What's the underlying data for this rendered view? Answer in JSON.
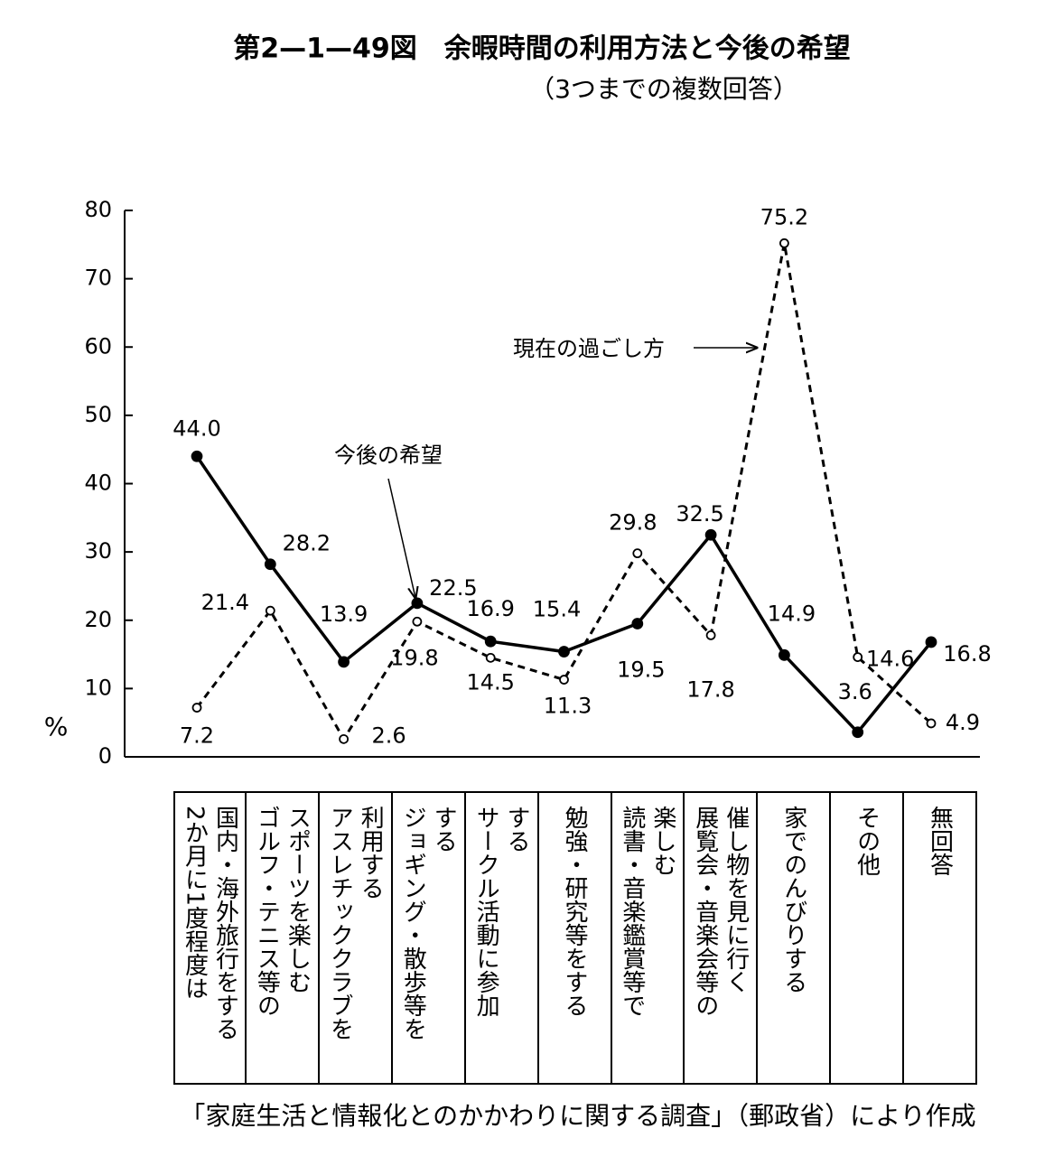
{
  "chart_data": {
    "type": "line",
    "title": "第2—1—49図　余暇時間の利用方法と今後の希望",
    "subtitle": "（3つまでの複数回答）",
    "y_label": "%",
    "source": "「家庭生活と情報化とのかかわりに関する調査」（郵政省）により作成",
    "categories": [
      "国内・海外旅行をする\n2か月に1度程度は",
      "スポーツを楽しむ\nゴルフ・テニス等の",
      "利用する\nアスレチッククラブを",
      "する\nジョギング・散歩等を",
      "する\nサークル活動に参加",
      "勉強・研究等をする",
      "楽しむ\n読書・音楽鑑賞等で",
      "催し物を見に行く\n展覧会・音楽会等の",
      "家でのんびりする",
      "その他",
      "無回答"
    ],
    "series": [
      {
        "name": "今後の希望",
        "color": "#000000",
        "style": "solid",
        "values": [
          44.0,
          28.2,
          13.9,
          22.5,
          16.9,
          15.4,
          19.5,
          32.5,
          14.9,
          3.6,
          16.8
        ],
        "value_labels": [
          "44.0",
          "28.2",
          "13.9",
          "22.5",
          "16.9",
          "15.4",
          "19.5",
          "32.5",
          "14.9",
          "3.6",
          "16.8"
        ]
      },
      {
        "name": "現在の過ごし方",
        "color": "#000000",
        "style": "dashed",
        "values": [
          7.2,
          21.4,
          2.6,
          19.8,
          14.5,
          11.3,
          29.8,
          17.8,
          75.2,
          14.6,
          4.9
        ],
        "value_labels": [
          "7.2",
          "21.4",
          "2.6",
          "19.8",
          "14.5",
          "11.3",
          "29.8",
          "17.8",
          "75.2",
          "14.6",
          "4.9"
        ]
      }
    ],
    "ylim": [
      0,
      80
    ],
    "yticks": [
      0,
      10,
      20,
      30,
      40,
      50,
      60,
      70,
      80
    ]
  }
}
